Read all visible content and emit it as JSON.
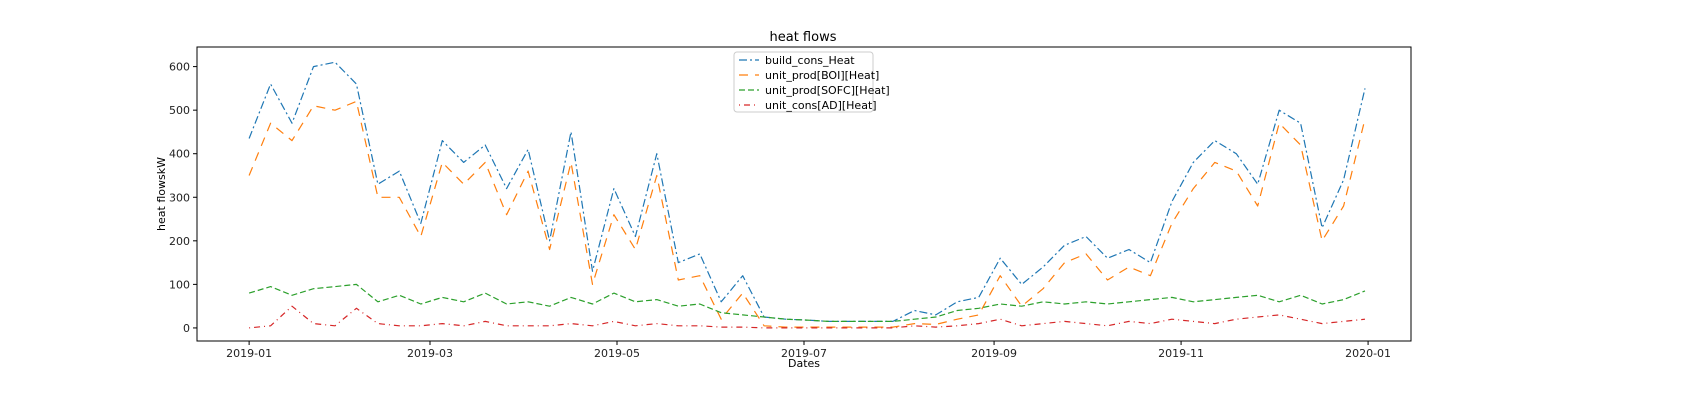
{
  "chart_data": {
    "type": "line",
    "title": "heat flows",
    "xlabel": "Dates",
    "ylabel": "heat flowskW",
    "x_range": [
      "2018-12-15",
      "2020-01-15"
    ],
    "ylim": [
      -30,
      645
    ],
    "grid": false,
    "legend_position": "top-center",
    "x_ticks": [
      "2019-01",
      "2019-03",
      "2019-05",
      "2019-07",
      "2019-09",
      "2019-11",
      "2020-01"
    ],
    "y_ticks": [
      0,
      100,
      200,
      300,
      400,
      500,
      600
    ],
    "x": [
      "2019-01-01",
      "2019-01-08",
      "2019-01-15",
      "2019-01-22",
      "2019-01-29",
      "2019-02-05",
      "2019-02-12",
      "2019-02-19",
      "2019-02-26",
      "2019-03-05",
      "2019-03-12",
      "2019-03-19",
      "2019-03-26",
      "2019-04-02",
      "2019-04-09",
      "2019-04-16",
      "2019-04-23",
      "2019-04-30",
      "2019-05-07",
      "2019-05-14",
      "2019-05-21",
      "2019-05-28",
      "2019-06-04",
      "2019-06-11",
      "2019-06-18",
      "2019-06-25",
      "2019-07-02",
      "2019-07-09",
      "2019-07-16",
      "2019-07-23",
      "2019-07-30",
      "2019-08-06",
      "2019-08-13",
      "2019-08-20",
      "2019-08-27",
      "2019-09-03",
      "2019-09-10",
      "2019-09-17",
      "2019-09-24",
      "2019-10-01",
      "2019-10-08",
      "2019-10-15",
      "2019-10-22",
      "2019-10-29",
      "2019-11-05",
      "2019-11-12",
      "2019-11-19",
      "2019-11-26",
      "2019-12-03",
      "2019-12-10",
      "2019-12-17",
      "2019-12-24",
      "2019-12-31"
    ],
    "series": [
      {
        "name": "build_cons_Heat",
        "color": "#1f77b4",
        "dash": "8,3,2,3",
        "values": [
          435,
          560,
          470,
          600,
          610,
          560,
          330,
          360,
          240,
          430,
          380,
          420,
          320,
          410,
          200,
          450,
          130,
          320,
          210,
          400,
          150,
          170,
          60,
          120,
          25,
          20,
          18,
          15,
          15,
          15,
          15,
          40,
          30,
          60,
          70,
          160,
          100,
          140,
          190,
          210,
          160,
          180,
          150,
          290,
          380,
          430,
          400,
          330,
          500,
          470,
          230,
          340,
          550
        ]
      },
      {
        "name": "unit_prod[BOI][Heat]",
        "color": "#ff7f0e",
        "dash": "9,7",
        "values": [
          350,
          470,
          430,
          510,
          500,
          520,
          300,
          300,
          210,
          380,
          330,
          380,
          260,
          360,
          180,
          380,
          100,
          260,
          180,
          350,
          110,
          120,
          20,
          80,
          5,
          2,
          2,
          2,
          2,
          2,
          2,
          10,
          8,
          20,
          30,
          120,
          50,
          90,
          150,
          170,
          110,
          140,
          120,
          240,
          320,
          380,
          360,
          280,
          470,
          420,
          200,
          280,
          480
        ]
      },
      {
        "name": "unit_prod[SOFC][Heat]",
        "color": "#2ca02c",
        "dash": "6,3",
        "values": [
          80,
          95,
          75,
          90,
          95,
          100,
          60,
          75,
          55,
          70,
          60,
          80,
          55,
          60,
          50,
          70,
          55,
          80,
          60,
          65,
          50,
          55,
          35,
          30,
          25,
          20,
          18,
          15,
          15,
          15,
          15,
          20,
          25,
          40,
          45,
          55,
          50,
          60,
          55,
          60,
          55,
          60,
          65,
          70,
          60,
          65,
          70,
          75,
          60,
          75,
          55,
          65,
          85
        ]
      },
      {
        "name": "unit_cons[AD][Heat]",
        "color": "#d62728",
        "dash": "1,4,6,4",
        "values": [
          0,
          5,
          50,
          10,
          5,
          45,
          10,
          5,
          5,
          10,
          5,
          15,
          5,
          5,
          5,
          10,
          5,
          15,
          5,
          10,
          5,
          5,
          2,
          2,
          0,
          0,
          0,
          0,
          0,
          0,
          0,
          5,
          2,
          5,
          10,
          20,
          5,
          10,
          15,
          10,
          5,
          15,
          10,
          20,
          15,
          10,
          20,
          25,
          30,
          20,
          10,
          15,
          20
        ]
      }
    ]
  }
}
